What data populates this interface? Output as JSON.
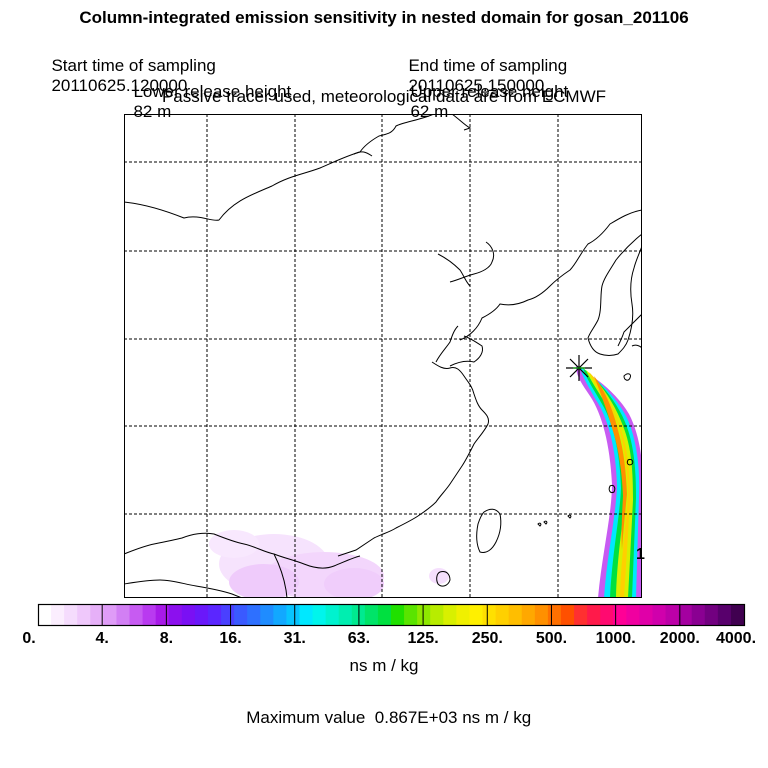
{
  "header": {
    "title": "Column-integrated emission sensitivity in nested domain for gosan_201106",
    "start_label": "Start time of sampling",
    "start_value": "20110625.120000",
    "end_label": "End time of sampling",
    "end_value": "20110625.150000",
    "lower_label": "Lower release height",
    "lower_value": "82 m",
    "upper_label": "Upper release height",
    "upper_value": "62 m",
    "tracer_note": "Passive tracer used, meteorological data are from ECMWF"
  },
  "map": {
    "edge_label": "1",
    "colors": {
      "coast": "#000000",
      "grid": "#000000",
      "marker": "#000000",
      "marker_accent": "#00a000"
    }
  },
  "colorbar": {
    "tick_labels": [
      "0.",
      "4.",
      "8.",
      "16.",
      "31.",
      "63.",
      "125.",
      "250.",
      "500.",
      "1000.",
      "2000.",
      "4000."
    ],
    "segment_colors": [
      "#ffffff",
      "#fbeefe",
      "#f5dcfd",
      "#efc8fb",
      "#e6b0f8",
      "#df9cf7",
      "#d27ff4",
      "#c75bf2",
      "#b93af0",
      "#a81ae8",
      "#8c10ee",
      "#7a10f4",
      "#6a18fa",
      "#5b26ff",
      "#4a40ff",
      "#3a5aff",
      "#2e70ff",
      "#1f8cff",
      "#12a8ff",
      "#08c4ff",
      "#00e8ff",
      "#00f5ec",
      "#00f2cf",
      "#00eeb0",
      "#00ea90",
      "#00e468",
      "#00e040",
      "#20e000",
      "#5ae400",
      "#8ee800",
      "#b8ec00",
      "#d8f000",
      "#f0f000",
      "#fff000",
      "#ffe000",
      "#ffd000",
      "#ffbe00",
      "#ffa800",
      "#ff9000",
      "#ff7000",
      "#ff5000",
      "#ff3030",
      "#ff1a4a",
      "#ff0a70",
      "#ff0096",
      "#f000a0",
      "#e000a8",
      "#d000ac",
      "#bc00a8",
      "#a400a0",
      "#8a0092",
      "#720080",
      "#58006c",
      "#400050"
    ],
    "units": "ns m / kg",
    "max_label": "Maximum value",
    "max_value": "0.867E+03",
    "max_units": "ns m / kg"
  }
}
